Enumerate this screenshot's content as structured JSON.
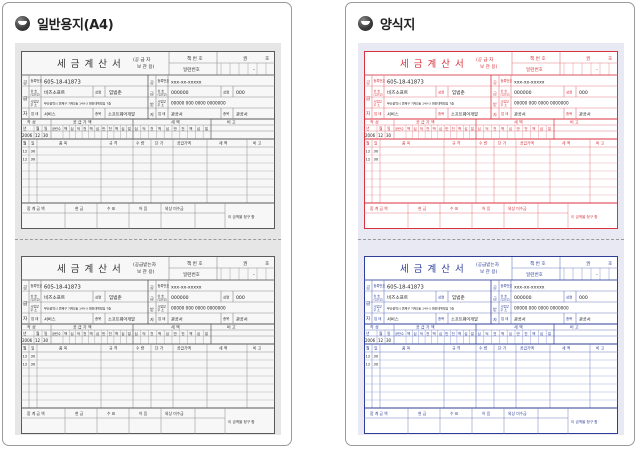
{
  "panels": [
    {
      "id": "plain",
      "title": "일반용지(A4)",
      "ink": "#5a5a5a",
      "inkLight": "#8a8a8a"
    },
    {
      "id": "form",
      "title": "양식지",
      "ink": "#d8323c",
      "inkLight": "#e07a80",
      "inkBottom": "#2e3f9a",
      "inkBottomLight": "#6d7bbf"
    }
  ],
  "invoice": {
    "title": "세 금 계 산 서",
    "copy_top": [
      "(공 급 자",
      "보 관 용)"
    ],
    "copy_bottom": [
      "(공급받는자",
      "보 관 용)"
    ],
    "book_no_label": "책 번 호",
    "book_no_unit": "권",
    "book_no_unit2": "호",
    "serial_label": "일련번호",
    "serial_dash": "-",
    "supplier_side": "공급자",
    "buyer_side": "공급받는자",
    "reg_label": "등록번호",
    "supplier_reg": "605-18-41873",
    "buyer_reg": "xxx-xx-xxxxx",
    "name_label": "상 호 (법인명)",
    "supplier_name": "비즈소프트",
    "rep_label": "성명",
    "supplier_rep": "임범춘",
    "buyer_name": "000000",
    "buyer_rep": "000",
    "addr_label": "사업장 주 소",
    "supplier_addr": "부산광역시 연제구 거제1동 149-3 대한데뷔빌딩 7층",
    "buyer_addr": "00000 000 0000 0000000",
    "biz_label": "업 태",
    "supplier_biz": "서비스",
    "item_label": "종목",
    "supplier_item": "소프트웨어개발",
    "buyer_biz": "관공서",
    "buyer_item": "관공서",
    "section1_headers": [
      "작 성",
      "공 급 가 액",
      "세 액",
      "비 고"
    ],
    "section1_sub": [
      "년",
      "월",
      "일",
      "공란수",
      "백",
      "십",
      "억",
      "천",
      "백",
      "십",
      "만",
      "천",
      "백",
      "십",
      "일",
      "십",
      "억",
      "천",
      "백",
      "십",
      "만",
      "천",
      "백",
      "십",
      "일"
    ],
    "date_values": [
      "2006",
      "12",
      "30"
    ],
    "item_headers": [
      "월",
      "일",
      "품 목",
      "규 격",
      "수 량",
      "단 가",
      "공급가액",
      "세 액",
      "비 고"
    ],
    "item_row_date": [
      "12",
      "30"
    ],
    "footer_headers": [
      "합 계 금 액",
      "현 금",
      "수 표",
      "어 음",
      "외상 미수금"
    ],
    "footer_note": "이 금액을 청구 함"
  }
}
